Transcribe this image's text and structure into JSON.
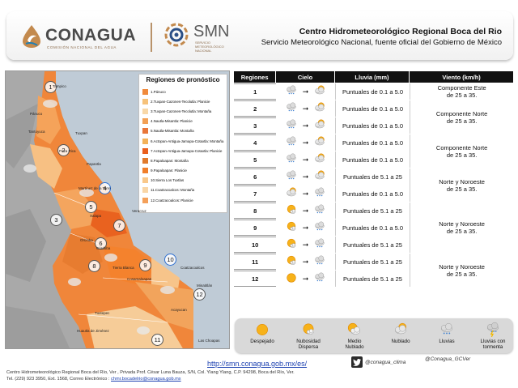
{
  "header": {
    "conagua_name": "CONAGUA",
    "conagua_sub": "COMISIÓN NACIONAL DEL AGUA",
    "smn_name": "SMN",
    "smn_sub": "SERVICIO METEOROLÓGICO NACIONAL",
    "title": "Centro Hidrometeorológico Regional Boca del Rio",
    "subtitle": "Servicio Meteorológico Nacional, fuente oficial del Gobierno de México"
  },
  "map": {
    "legend_title": "Regiones de pronóstico",
    "legend_items": [
      {
        "label": "1.Pánuco",
        "color": "#f08a3c"
      },
      {
        "label": "2.Tuxpan-Cazones-Tecolutla: Planicie",
        "color": "#f6c27a"
      },
      {
        "label": "3.Tuxpan-Cazones-Tecolutla: Montaña",
        "color": "#f8d8a8"
      },
      {
        "label": "4.Nautla-Misantla: Planicie",
        "color": "#f2a055"
      },
      {
        "label": "5.Nautla-Misantla: Montaña",
        "color": "#e8763a"
      },
      {
        "label": "6.Actopan-Antigua-Jamapa-Cotaxtla: Montaña",
        "color": "#f3b25a"
      },
      {
        "label": "7.Actopan-Antigua-Jamapa-Cotaxtla: Planicie",
        "color": "#e95f1e"
      },
      {
        "label": "8.Papaloapan: Montaña",
        "color": "#e07a2c"
      },
      {
        "label": "9.Papaloapan: Planicie",
        "color": "#f07e2a"
      },
      {
        "label": "10.Sierra Los Tuxtlas",
        "color": "#f9c88a"
      },
      {
        "label": "11.Coatzacoalcos: Montaña",
        "color": "#f9d6a6"
      },
      {
        "label": "12.Coatzacoalcos: Planicie",
        "color": "#f4a05a"
      }
    ],
    "region_numbers": [
      "1",
      "2",
      "3",
      "4",
      "5",
      "6",
      "7",
      "8",
      "9",
      "10",
      "11",
      "12"
    ],
    "cities": [
      "Tampico",
      "Pánuco",
      "Tantoyuca",
      "Tuxpan",
      "Poza Rica",
      "Papantla",
      "Martínez de la Torre",
      "Xalapa",
      "Veracruz",
      "Orizaba",
      "Córdoba",
      "Tierra Blanca",
      "Cosamaloapan",
      "Tuxtepec",
      "Acayucan",
      "Minatitlán",
      "Coatzacoalcos",
      "Las Choapas",
      "Huautla de Jiménez"
    ]
  },
  "forecast": {
    "headers": [
      "Regiones",
      "Cielo",
      "Lluvia (mm)",
      "Viento (km/h)"
    ],
    "rows": [
      {
        "region": "1",
        "sky_from": "lluvias",
        "sky_to": "nublado",
        "rain": "Puntuales de 0.1 a 5.0"
      },
      {
        "region": "2",
        "sky_from": "lluvias",
        "sky_to": "nublado",
        "rain": "Puntuales de 0.1 a 5.0"
      },
      {
        "region": "3",
        "sky_from": "lluvias",
        "sky_to": "nublado",
        "rain": "Puntuales de 0.1 a 5.0"
      },
      {
        "region": "4",
        "sky_from": "lluvias",
        "sky_to": "nublado",
        "rain": "Puntuales de 0.1 a 5.0"
      },
      {
        "region": "5",
        "sky_from": "lluvias",
        "sky_to": "nublado",
        "rain": "Puntuales de 0.1 a 5.0"
      },
      {
        "region": "6",
        "sky_from": "lluvias",
        "sky_to": "nublado",
        "rain": "Puntuales de 5.1 a 25"
      },
      {
        "region": "7",
        "sky_from": "nublado",
        "sky_to": "lluvias",
        "rain": "Puntuales de 0.1 a 5.0"
      },
      {
        "region": "8",
        "sky_from": "nubosidad",
        "sky_to": "lluvias",
        "rain": "Puntuales de 5.1 a 25"
      },
      {
        "region": "9",
        "sky_from": "nubosidad",
        "sky_to": "lluvias",
        "rain": "Puntuales de 0.1 a 5.0"
      },
      {
        "region": "10",
        "sky_from": "nubosidad",
        "sky_to": "lluvias",
        "rain": "Puntuales de 5.1 a 25"
      },
      {
        "region": "11",
        "sky_from": "nubosidad",
        "sky_to": "lluvias",
        "rain": "Puntuales de 5.1 a 25"
      },
      {
        "region": "12",
        "sky_from": "despejado",
        "sky_to": "lluvias",
        "rain": "Puntuales de 5.1 a 25"
      }
    ],
    "winds": [
      {
        "text1": "Componente Este",
        "text2": "de 25 a 35."
      },
      {
        "text1": "Componente Norte",
        "text2": "de 25 a 35."
      },
      {
        "text1": "Componente Norte",
        "text2": "de 25 a 35."
      },
      {
        "text1": "Norte y Noroeste",
        "text2": "de 25 a 35."
      },
      {
        "text1": "Norte y Noroeste",
        "text2": "de 25 a 35."
      },
      {
        "text1": "Norte y Noroeste",
        "text2": "de 25 a 35."
      }
    ]
  },
  "sky_legend": [
    {
      "label1": "Despejado",
      "label2": "",
      "icon": "despejado"
    },
    {
      "label1": "Nubosidad",
      "label2": "Dispersa",
      "icon": "nubosidad"
    },
    {
      "label1": "Medio",
      "label2": "Nublado",
      "icon": "medio"
    },
    {
      "label1": "Nublado",
      "label2": "",
      "icon": "nublado"
    },
    {
      "label1": "Lluvias",
      "label2": "",
      "icon": "lluvias"
    },
    {
      "label1": "Lluvias con",
      "label2": "tormenta",
      "icon": "tormenta"
    }
  ],
  "footer": {
    "link": "http://smn.conagua.gob.mx/es/",
    "line1": "Centro Hidrometeorológico Regional Boca del Río, Ver , Privada Prof. César Luna Bauza, S/N, Col. Ylang Ylang, C.P. 94298, Boca del Río, Ver.",
    "line2_prefix": "Tel. (229) 923 3950, Ext. 1568, Correo Electrónico : ",
    "email": "chmr.bocadelrio@conagua.gob.mx",
    "twitter1": "@conagua_clima",
    "twitter2": "@Conagua_GCVer"
  },
  "colors": {
    "header_bar": "#111111",
    "link": "#1a3fb0",
    "map_land": "#a9a9a9",
    "map_sea": "#bfcbd6"
  }
}
